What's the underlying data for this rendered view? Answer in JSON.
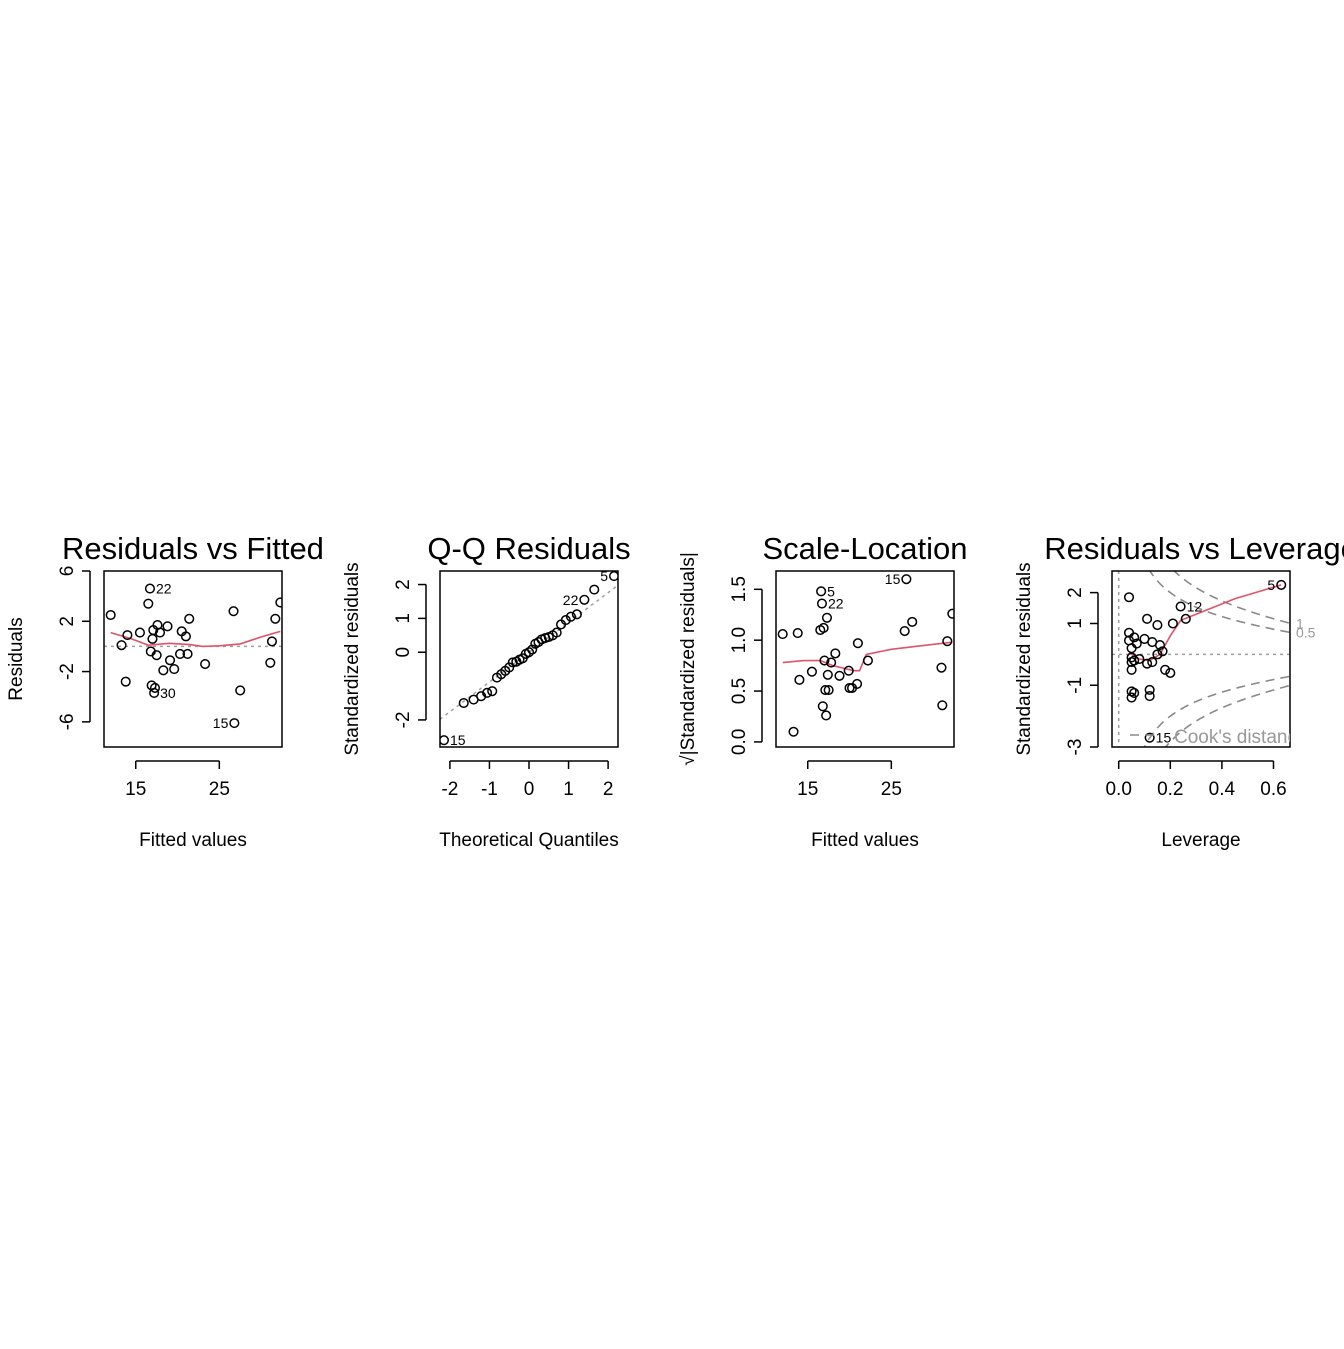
{
  "chart_data": [
    {
      "id": "rvf",
      "type": "scatter",
      "title": "Residuals vs Fitted",
      "xlabel": "Fitted values",
      "ylabel": "Residuals",
      "xlim": [
        11.2,
        32.5
      ],
      "ylim": [
        -8.0,
        6.0
      ],
      "xticks": [
        15,
        25
      ],
      "yticks": [
        -6,
        -2,
        2,
        6
      ],
      "reference_line": 0,
      "points": [
        [
          12.0,
          2.5
        ],
        [
          13.3,
          0.1
        ],
        [
          13.8,
          -2.8
        ],
        [
          14.0,
          0.9
        ],
        [
          15.5,
          1.1
        ],
        [
          16.5,
          3.4
        ],
        [
          16.7,
          4.6
        ],
        [
          16.8,
          -0.4
        ],
        [
          16.9,
          -3.1
        ],
        [
          17.0,
          0.6
        ],
        [
          17.1,
          1.3
        ],
        [
          17.2,
          -3.7
        ],
        [
          17.3,
          -3.3
        ],
        [
          17.5,
          -0.7
        ],
        [
          17.6,
          1.7
        ],
        [
          17.9,
          1.1
        ],
        [
          18.3,
          -1.9
        ],
        [
          18.8,
          1.6
        ],
        [
          19.1,
          -1.1
        ],
        [
          19.6,
          -1.8
        ],
        [
          20.3,
          -0.6
        ],
        [
          20.5,
          1.2
        ],
        [
          21.0,
          0.8
        ],
        [
          21.2,
          -0.6
        ],
        [
          21.4,
          2.2
        ],
        [
          23.3,
          -1.4
        ],
        [
          26.7,
          2.8
        ],
        [
          26.8,
          -6.1
        ],
        [
          27.5,
          -3.5
        ],
        [
          31.1,
          -1.3
        ],
        [
          31.3,
          0.4
        ],
        [
          31.7,
          2.2
        ],
        [
          32.3,
          3.5
        ]
      ],
      "labeled_points": [
        {
          "x": 16.7,
          "y": 4.6,
          "label": "22",
          "side": "right"
        },
        {
          "x": 17.2,
          "y": -3.7,
          "label": "30",
          "side": "right"
        },
        {
          "x": 26.8,
          "y": -6.1,
          "label": "15",
          "side": "left"
        }
      ],
      "smooth": [
        [
          12.0,
          1.1
        ],
        [
          14.5,
          0.6
        ],
        [
          16.5,
          0.1
        ],
        [
          19.0,
          0.25
        ],
        [
          21.5,
          0.15
        ],
        [
          23.0,
          0.0
        ],
        [
          25.0,
          0.05
        ],
        [
          27.5,
          0.2
        ],
        [
          30.0,
          0.75
        ],
        [
          32.3,
          1.2
        ]
      ]
    },
    {
      "id": "qq",
      "type": "scatter",
      "title": "Q-Q Residuals",
      "xlabel": "Theoretical Quantiles",
      "ylabel": "Standardized residuals",
      "xlim": [
        -2.25,
        2.25
      ],
      "ylim": [
        -2.8,
        2.4
      ],
      "xticks": [
        -2,
        -1,
        0,
        1,
        2
      ],
      "yticks": [
        -2,
        0,
        1,
        2
      ],
      "yticklabels": [
        "-2",
        "0",
        "1",
        "2"
      ],
      "reference_line": {
        "intercept": 0.0,
        "slope": 0.88
      },
      "points": [
        [
          -2.15,
          -2.6
        ],
        [
          -1.65,
          -1.5
        ],
        [
          -1.4,
          -1.4
        ],
        [
          -1.21,
          -1.3
        ],
        [
          -1.06,
          -1.2
        ],
        [
          -0.93,
          -1.15
        ],
        [
          -0.81,
          -0.75
        ],
        [
          -0.7,
          -0.65
        ],
        [
          -0.6,
          -0.55
        ],
        [
          -0.5,
          -0.45
        ],
        [
          -0.41,
          -0.3
        ],
        [
          -0.32,
          -0.28
        ],
        [
          -0.24,
          -0.22
        ],
        [
          -0.16,
          -0.18
        ],
        [
          -0.08,
          -0.05
        ],
        [
          0.0,
          0.0
        ],
        [
          0.08,
          0.08
        ],
        [
          0.16,
          0.25
        ],
        [
          0.24,
          0.3
        ],
        [
          0.32,
          0.38
        ],
        [
          0.41,
          0.42
        ],
        [
          0.5,
          0.45
        ],
        [
          0.6,
          0.5
        ],
        [
          0.7,
          0.58
        ],
        [
          0.81,
          0.82
        ],
        [
          0.93,
          0.95
        ],
        [
          1.06,
          1.05
        ],
        [
          1.21,
          1.12
        ],
        [
          1.4,
          1.55
        ],
        [
          1.65,
          1.85
        ],
        [
          2.15,
          2.25
        ]
      ],
      "labeled_points": [
        {
          "x": -2.15,
          "y": -2.6,
          "label": "15",
          "side": "right"
        },
        {
          "x": 1.4,
          "y": 1.55,
          "label": "22",
          "side": "left"
        },
        {
          "x": 2.15,
          "y": 2.25,
          "label": "5",
          "side": "left"
        }
      ]
    },
    {
      "id": "sl",
      "type": "scatter",
      "title": "Scale-Location",
      "xlabel": "Fitted values",
      "ylabel": "√|Standardized residuals|",
      "xlim": [
        11.2,
        32.5
      ],
      "ylim": [
        -0.05,
        1.68
      ],
      "xticks": [
        15,
        25
      ],
      "yticks": [
        0.0,
        0.5,
        1.0,
        1.5
      ],
      "yticklabels": [
        "0.0",
        "0.5",
        "1.0",
        "1.5"
      ],
      "points": [
        [
          12.0,
          1.06
        ],
        [
          13.3,
          0.1
        ],
        [
          13.8,
          1.07
        ],
        [
          14.0,
          0.61
        ],
        [
          15.5,
          0.69
        ],
        [
          16.5,
          1.1
        ],
        [
          16.6,
          1.48
        ],
        [
          16.7,
          1.36
        ],
        [
          16.8,
          0.35
        ],
        [
          16.9,
          1.12
        ],
        [
          17.0,
          0.8
        ],
        [
          17.1,
          0.51
        ],
        [
          17.2,
          0.26
        ],
        [
          17.3,
          1.22
        ],
        [
          17.4,
          0.66
        ],
        [
          17.5,
          0.51
        ],
        [
          17.8,
          0.78
        ],
        [
          18.3,
          0.87
        ],
        [
          18.8,
          0.65
        ],
        [
          19.9,
          0.7
        ],
        [
          20.0,
          0.53
        ],
        [
          20.3,
          0.53
        ],
        [
          20.9,
          0.57
        ],
        [
          21.0,
          0.97
        ],
        [
          22.2,
          0.8
        ],
        [
          26.6,
          1.09
        ],
        [
          26.8,
          1.6
        ],
        [
          27.5,
          1.18
        ],
        [
          31.0,
          0.73
        ],
        [
          31.1,
          0.36
        ],
        [
          31.7,
          0.99
        ],
        [
          32.3,
          1.26
        ]
      ],
      "labeled_points": [
        {
          "x": 16.6,
          "y": 1.48,
          "label": "5",
          "side": "right"
        },
        {
          "x": 16.7,
          "y": 1.36,
          "label": "22",
          "side": "right"
        },
        {
          "x": 26.8,
          "y": 1.6,
          "label": "15",
          "side": "left"
        }
      ],
      "smooth": [
        [
          12.0,
          0.78
        ],
        [
          14.5,
          0.8
        ],
        [
          16.5,
          0.8
        ],
        [
          18.0,
          0.75
        ],
        [
          20.5,
          0.7
        ],
        [
          21.2,
          0.7
        ],
        [
          22.0,
          0.86
        ],
        [
          25.0,
          0.91
        ],
        [
          28.0,
          0.94
        ],
        [
          32.3,
          0.98
        ]
      ]
    },
    {
      "id": "rvl",
      "type": "scatter",
      "title": "Residuals vs Leverage",
      "xlabel": "Leverage",
      "ylabel": "Standardized residuals",
      "xlim": [
        -0.026,
        0.664
      ],
      "ylim": [
        -3.0,
        2.7
      ],
      "xticks": [
        0.0,
        0.2,
        0.4,
        0.6
      ],
      "xticklabels": [
        "0.0",
        "0.2",
        "0.4",
        "0.6"
      ],
      "yticks": [
        -3,
        -1,
        1,
        2
      ],
      "vertical_reference": 0,
      "horizontal_reference": 0,
      "cook_levels": [
        0.5,
        1
      ],
      "cook_labels": [
        "0.5",
        "1"
      ],
      "legend": "Cook's distance",
      "points": [
        [
          0.04,
          1.85
        ],
        [
          0.04,
          0.7
        ],
        [
          0.04,
          0.45
        ],
        [
          0.05,
          0.2
        ],
        [
          0.05,
          -0.1
        ],
        [
          0.05,
          -0.25
        ],
        [
          0.05,
          -0.5
        ],
        [
          0.05,
          -1.2
        ],
        [
          0.05,
          -1.4
        ],
        [
          0.06,
          0.55
        ],
        [
          0.06,
          -0.2
        ],
        [
          0.06,
          -1.25
        ],
        [
          0.07,
          0.35
        ],
        [
          0.08,
          -0.15
        ],
        [
          0.1,
          0.5
        ],
        [
          0.11,
          1.15
        ],
        [
          0.11,
          -0.3
        ],
        [
          0.12,
          -1.35
        ],
        [
          0.12,
          -1.15
        ],
        [
          0.13,
          0.4
        ],
        [
          0.13,
          -0.25
        ],
        [
          0.15,
          0.95
        ],
        [
          0.15,
          0.0
        ],
        [
          0.16,
          0.3
        ],
        [
          0.17,
          0.1
        ],
        [
          0.18,
          -0.5
        ],
        [
          0.2,
          -0.6
        ],
        [
          0.21,
          1.0
        ],
        [
          0.24,
          1.55
        ],
        [
          0.26,
          1.15
        ],
        [
          0.63,
          2.25
        ]
      ],
      "labeled_points": [
        {
          "x": 0.12,
          "y": -2.7,
          "label": "15",
          "side": "right"
        },
        {
          "x": 0.24,
          "y": 1.55,
          "label": "12",
          "side": "right"
        },
        {
          "x": 0.63,
          "y": 2.25,
          "label": "5",
          "side": "left"
        }
      ],
      "extra_points": [
        [
          0.12,
          -2.7
        ]
      ],
      "smooth": [
        [
          0.04,
          0.05
        ],
        [
          0.08,
          -0.15
        ],
        [
          0.12,
          -0.2
        ],
        [
          0.16,
          0.0
        ],
        [
          0.2,
          0.6
        ],
        [
          0.24,
          1.1
        ],
        [
          0.3,
          1.3
        ],
        [
          0.45,
          1.8
        ],
        [
          0.63,
          2.25
        ]
      ]
    }
  ]
}
